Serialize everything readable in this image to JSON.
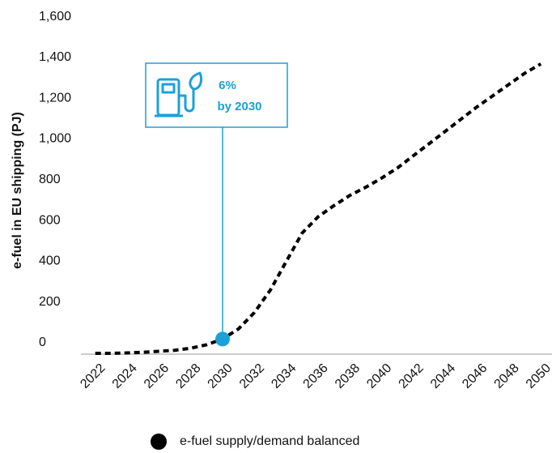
{
  "chart_data": {
    "type": "line",
    "y_label": "e-fuel in EU shipping (PJ)",
    "x": [
      2022,
      2023,
      2024,
      2025,
      2026,
      2027,
      2028,
      2029,
      2030,
      2031,
      2032,
      2033,
      2034,
      2035,
      2036,
      2037,
      2038,
      2039,
      2040,
      2041,
      2042,
      2043,
      2044,
      2045,
      2046,
      2047,
      2048,
      2049,
      2050
    ],
    "series": [
      {
        "name": "e-fuel supply/demand balanced",
        "color": "#000000",
        "values": [
          0,
          0,
          2,
          5,
          10,
          15,
          25,
          42,
          70,
          120,
          200,
          310,
          450,
          590,
          670,
          725,
          775,
          815,
          860,
          910,
          970,
          1030,
          1090,
          1150,
          1210,
          1265,
          1320,
          1375,
          1420
        ]
      }
    ],
    "xlim": [
      2021.1,
      2050.7
    ],
    "xticks": [
      2022,
      2024,
      2026,
      2028,
      2030,
      2032,
      2034,
      2036,
      2038,
      2040,
      2042,
      2044,
      2046,
      2048,
      2050
    ],
    "ylim": [
      0,
      1600
    ],
    "yticks": [
      0,
      200,
      400,
      600,
      800,
      {
        "value": 1000,
        "label": "1,000"
      },
      {
        "value": 1200,
        "label": "1,200"
      },
      {
        "value": 1400,
        "label": "1,400"
      },
      {
        "value": 1600,
        "label": "1,600"
      }
    ],
    "annotation": {
      "lines": [
        "6%",
        "by 2030"
      ],
      "point_index": 8,
      "color": "#1ba1d8"
    },
    "grid": false
  }
}
